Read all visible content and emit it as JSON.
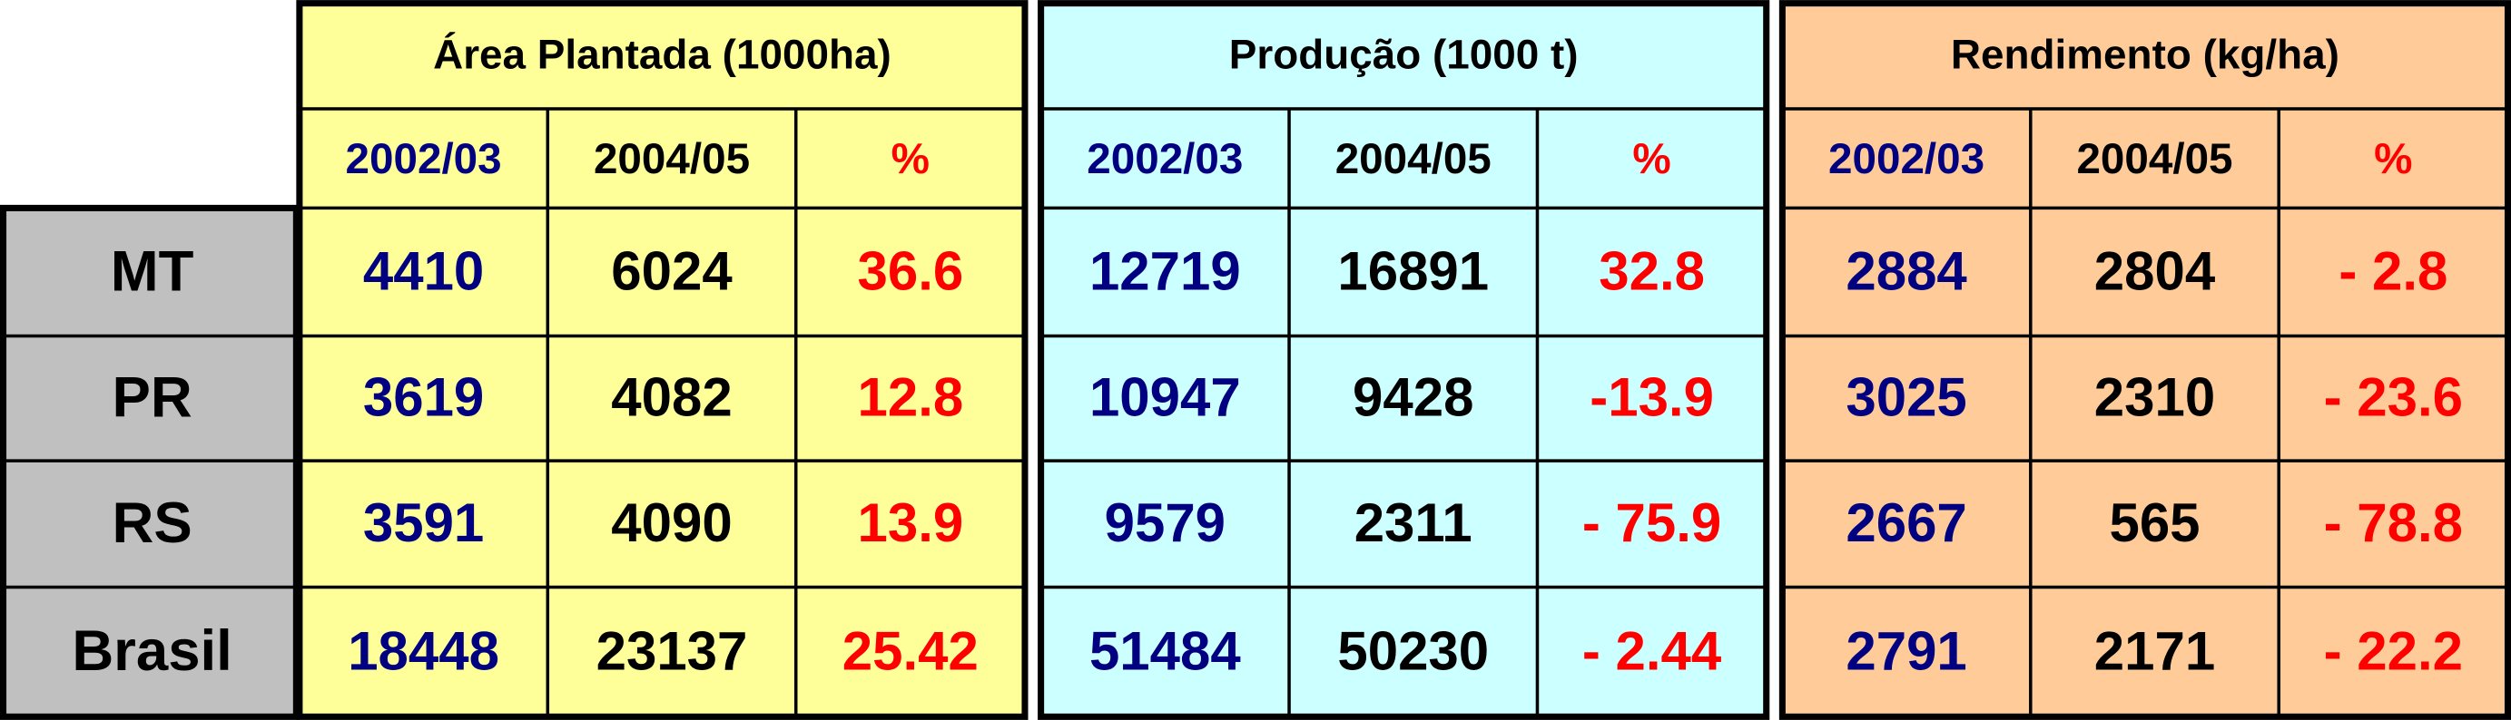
{
  "row_labels": [
    "MT",
    "PR",
    "RS",
    "Brasil"
  ],
  "tables": [
    {
      "title": "Área Plantada (1000ha)",
      "columns": [
        "2002/03",
        "2004/05",
        "%"
      ],
      "rows": [
        [
          "4410",
          "6024",
          "36.6"
        ],
        [
          "3619",
          "4082",
          "12.8"
        ],
        [
          "3591",
          "4090",
          "13.9"
        ],
        [
          "18448",
          "23137",
          "25.42"
        ]
      ]
    },
    {
      "title": "Produção (1000 t)",
      "columns": [
        "2002/03",
        "2004/05",
        "%"
      ],
      "rows": [
        [
          "12719",
          "16891",
          "32.8"
        ],
        [
          "10947",
          "9428",
          "-13.9"
        ],
        [
          "9579",
          "2311",
          "- 75.9"
        ],
        [
          "51484",
          "50230",
          "- 2.44"
        ]
      ]
    },
    {
      "title": "Rendimento (kg/ha)",
      "columns": [
        "2002/03",
        "2004/05",
        "%"
      ],
      "rows": [
        [
          "2884",
          "2804",
          "- 2.8"
        ],
        [
          "3025",
          "2310",
          "- 23.6"
        ],
        [
          "2667",
          "565",
          "- 78.8"
        ],
        [
          "2791",
          "2171",
          "- 22.2"
        ]
      ]
    }
  ]
}
